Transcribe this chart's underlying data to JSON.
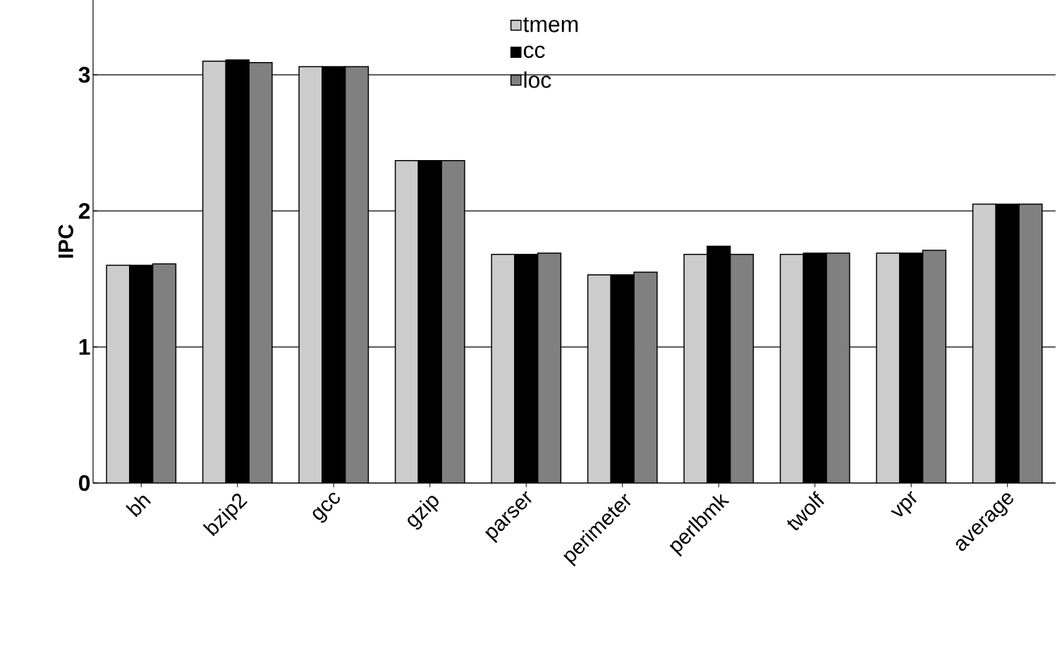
{
  "chart_data": {
    "type": "bar",
    "ylabel": "IPC",
    "categories": [
      "bh",
      "bzip2",
      "gcc",
      "gzip",
      "parser",
      "perimeter",
      "perlbmk",
      "twolf",
      "vpr",
      "average"
    ],
    "series": [
      {
        "name": "tmem",
        "color": "#cccccc",
        "values": [
          1.6,
          3.1,
          3.06,
          2.37,
          1.68,
          1.53,
          1.68,
          1.68,
          1.69,
          2.05
        ]
      },
      {
        "name": "cc",
        "color": "#000000",
        "values": [
          1.6,
          3.11,
          3.06,
          2.37,
          1.68,
          1.53,
          1.74,
          1.69,
          1.69,
          2.05
        ]
      },
      {
        "name": "loc",
        "color": "#808080",
        "values": [
          1.61,
          3.09,
          3.06,
          2.37,
          1.69,
          1.55,
          1.68,
          1.69,
          1.71,
          2.05
        ]
      }
    ],
    "ylim": [
      0,
      3.55
    ],
    "yticks": [
      0,
      1,
      2,
      3
    ],
    "grid": "y",
    "legend": "top"
  }
}
